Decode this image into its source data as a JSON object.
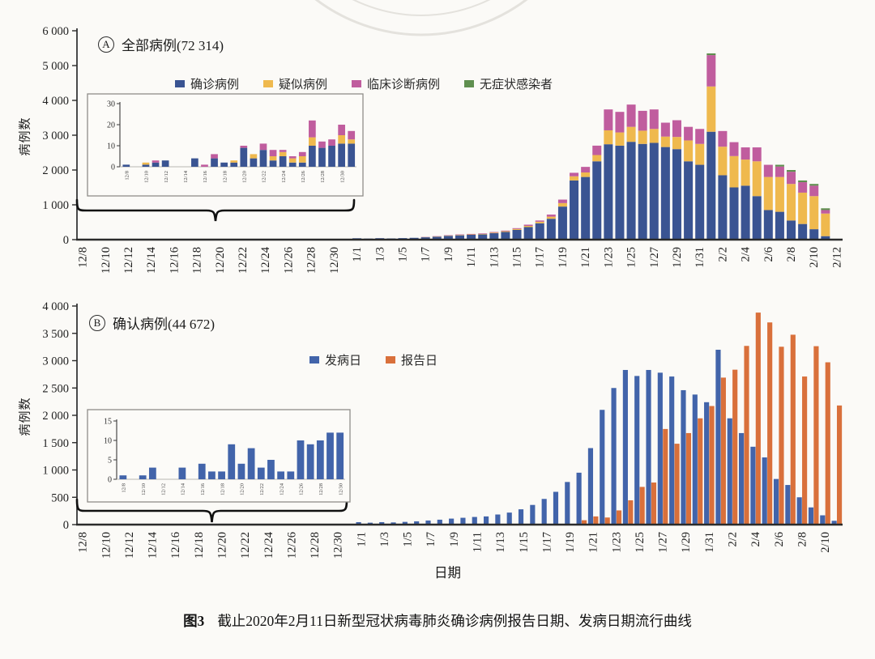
{
  "figure": {
    "caption_label": "图3",
    "caption_text": "截止2020年2月11日新型冠状病毒肺炎确诊病例报告日期、发病日期流行曲线",
    "x_axis_title": "日期",
    "y_axis_title": "病例数"
  },
  "colors": {
    "confirmed_blue": "#3a5492",
    "onset_blue": "#4264aa",
    "suspected_yellow": "#efb94e",
    "clinical_pink": "#c05d9e",
    "asymptomatic_green": "#5f8f4f",
    "report_orange": "#d9703b",
    "axis": "#2b2b2b",
    "watermark": "#e4e2dd"
  },
  "chart_data": [
    {
      "id": "panel-a",
      "type": "bar",
      "stacked": true,
      "panel_letter": "A",
      "title": "全部病例(72 314)",
      "total_cases": "72 314",
      "ylabel": "病例数",
      "ylim": [
        0,
        6000
      ],
      "yticks": [
        "0",
        "1 000",
        "2 000",
        "3 000",
        "4 000",
        "5 000",
        "6 000"
      ],
      "label_every": 2,
      "categories": [
        "12/8",
        "12/9",
        "12/10",
        "12/11",
        "12/12",
        "12/13",
        "12/14",
        "12/15",
        "12/16",
        "12/17",
        "12/18",
        "12/19",
        "12/20",
        "12/21",
        "12/22",
        "12/23",
        "12/24",
        "12/25",
        "12/26",
        "12/27",
        "12/28",
        "12/29",
        "12/30",
        "12/31",
        "1/1",
        "1/2",
        "1/3",
        "1/4",
        "1/5",
        "1/6",
        "1/7",
        "1/8",
        "1/9",
        "1/10",
        "1/11",
        "1/12",
        "1/13",
        "1/14",
        "1/15",
        "1/16",
        "1/17",
        "1/18",
        "1/19",
        "1/20",
        "1/21",
        "1/22",
        "1/23",
        "1/24",
        "1/25",
        "1/26",
        "1/27",
        "1/28",
        "1/29",
        "1/30",
        "1/31",
        "2/1",
        "2/2",
        "2/3",
        "2/4",
        "2/5",
        "2/6",
        "2/7",
        "2/8",
        "2/9",
        "2/10",
        "2/11",
        "2/12"
      ],
      "series": [
        {
          "name": "确诊病例",
          "color": "#3a5492",
          "values": [
            1,
            0,
            1,
            2,
            3,
            0,
            0,
            4,
            0,
            4,
            2,
            2,
            9,
            4,
            8,
            3,
            5,
            2,
            2,
            10,
            9,
            10,
            11,
            11,
            40,
            30,
            42,
            35,
            44,
            52,
            68,
            85,
            110,
            125,
            140,
            150,
            185,
            220,
            280,
            360,
            470,
            600,
            950,
            1700,
            1800,
            2250,
            2740,
            2700,
            2810,
            2750,
            2780,
            2660,
            2600,
            2250,
            2150,
            3100,
            1850,
            1500,
            1550,
            1250,
            850,
            800,
            550,
            450,
            300,
            100,
            0
          ]
        },
        {
          "name": "疑似病例",
          "color": "#efb94e",
          "values": [
            0,
            0,
            1,
            0,
            0,
            0,
            0,
            0,
            0,
            0,
            0,
            1,
            0,
            2,
            0,
            2,
            2,
            2,
            3,
            4,
            0,
            0,
            4,
            2,
            3,
            3,
            4,
            3,
            4,
            4,
            6,
            7,
            10,
            12,
            12,
            15,
            18,
            22,
            28,
            35,
            45,
            60,
            100,
            120,
            130,
            180,
            400,
            380,
            430,
            380,
            400,
            300,
            350,
            600,
            600,
            1300,
            820,
            900,
            750,
            1000,
            950,
            1000,
            1050,
            900,
            950,
            650,
            0
          ]
        },
        {
          "name": "临床诊断病例",
          "color": "#c05d9e",
          "values": [
            0,
            0,
            0,
            1,
            0,
            0,
            0,
            0,
            1,
            2,
            0,
            0,
            1,
            0,
            3,
            3,
            1,
            1,
            2,
            8,
            3,
            3,
            5,
            4,
            2,
            2,
            4,
            2,
            2,
            4,
            6,
            8,
            10,
            13,
            13,
            15,
            17,
            18,
            22,
            35,
            35,
            60,
            100,
            100,
            160,
            270,
            600,
            590,
            640,
            570,
            560,
            400,
            480,
            390,
            430,
            900,
            450,
            400,
            350,
            400,
            350,
            300,
            350,
            300,
            300,
            100,
            0
          ]
        },
        {
          "name": "无症状感染者",
          "color": "#5f8f4f",
          "values": [
            0,
            0,
            0,
            0,
            0,
            0,
            0,
            0,
            0,
            0,
            0,
            0,
            0,
            0,
            0,
            0,
            0,
            0,
            0,
            0,
            0,
            0,
            0,
            0,
            0,
            0,
            0,
            0,
            0,
            0,
            0,
            0,
            0,
            0,
            0,
            0,
            0,
            0,
            0,
            0,
            0,
            0,
            0,
            0,
            0,
            0,
            0,
            0,
            0,
            0,
            0,
            0,
            0,
            0,
            0,
            50,
            0,
            0,
            0,
            0,
            0,
            50,
            50,
            50,
            50,
            50,
            0
          ]
        }
      ],
      "inset": {
        "ylim": [
          0,
          30
        ],
        "yticks": [
          "0",
          "10",
          "20",
          "30"
        ],
        "label_every": 2,
        "categories": [
          "12/8",
          "12/9",
          "12/10",
          "12/11",
          "12/12",
          "12/13",
          "12/14",
          "12/15",
          "12/16",
          "12/17",
          "12/18",
          "12/19",
          "12/20",
          "12/21",
          "12/22",
          "12/23",
          "12/24",
          "12/25",
          "12/26",
          "12/27",
          "12/28",
          "12/29",
          "12/30",
          "12/31"
        ],
        "series": [
          {
            "name": "确诊病例",
            "color": "#3a5492",
            "values": [
              1,
              0,
              1,
              2,
              3,
              0,
              0,
              4,
              0,
              4,
              2,
              2,
              9,
              4,
              8,
              3,
              5,
              2,
              2,
              10,
              9,
              10,
              11,
              11
            ]
          },
          {
            "name": "疑似病例",
            "color": "#efb94e",
            "values": [
              0,
              0,
              1,
              0,
              0,
              0,
              0,
              0,
              0,
              0,
              0,
              1,
              0,
              2,
              0,
              2,
              2,
              2,
              3,
              4,
              0,
              0,
              4,
              2
            ]
          },
          {
            "name": "临床诊断病例",
            "color": "#c05d9e",
            "values": [
              0,
              0,
              0,
              1,
              0,
              0,
              0,
              0,
              1,
              2,
              0,
              0,
              1,
              0,
              3,
              3,
              1,
              1,
              2,
              8,
              3,
              3,
              5,
              4
            ]
          }
        ]
      }
    },
    {
      "id": "panel-b",
      "type": "bar",
      "stacked": false,
      "panel_letter": "B",
      "title": "确认病例(44 672)",
      "total_cases": "44 672",
      "ylabel": "病例数",
      "ylim": [
        0,
        4000
      ],
      "yticks": [
        "0",
        "500",
        "1 000",
        "1 500",
        "2 000",
        "2 500",
        "3 000",
        "3 500",
        "4 000"
      ],
      "label_every": 2,
      "categories": [
        "12/8",
        "12/9",
        "12/10",
        "12/11",
        "12/12",
        "12/13",
        "12/14",
        "12/15",
        "12/16",
        "12/17",
        "12/18",
        "12/19",
        "12/20",
        "12/21",
        "12/22",
        "12/23",
        "12/24",
        "12/25",
        "12/26",
        "12/27",
        "12/28",
        "12/29",
        "12/30",
        "12/31",
        "1/1",
        "1/2",
        "1/3",
        "1/4",
        "1/5",
        "1/6",
        "1/7",
        "1/8",
        "1/9",
        "1/10",
        "1/11",
        "1/12",
        "1/13",
        "1/14",
        "1/15",
        "1/16",
        "1/17",
        "1/18",
        "1/19",
        "1/20",
        "1/21",
        "1/22",
        "1/23",
        "1/24",
        "1/25",
        "1/26",
        "1/27",
        "1/28",
        "1/29",
        "1/30",
        "1/31",
        "2/1",
        "2/2",
        "2/3",
        "2/4",
        "2/5",
        "2/6",
        "2/7",
        "2/8",
        "2/9",
        "2/10",
        "2/11"
      ],
      "series": [
        {
          "name": "发病日",
          "color": "#4264aa",
          "values": [
            1,
            0,
            1,
            3,
            0,
            0,
            3,
            0,
            4,
            2,
            2,
            9,
            4,
            8,
            3,
            5,
            2,
            2,
            10,
            9,
            10,
            12,
            12,
            12,
            45,
            35,
            45,
            40,
            50,
            60,
            75,
            90,
            110,
            125,
            140,
            150,
            185,
            220,
            280,
            360,
            470,
            600,
            780,
            950,
            1400,
            2100,
            2500,
            2830,
            2720,
            2830,
            2780,
            2710,
            2460,
            2380,
            2240,
            3200,
            1945,
            1675,
            1425,
            1230,
            835,
            725,
            500,
            315,
            170,
            70
          ]
        },
        {
          "name": "报告日",
          "color": "#d9703b",
          "values": [
            0,
            0,
            0,
            0,
            0,
            0,
            0,
            0,
            0,
            0,
            0,
            0,
            0,
            0,
            0,
            0,
            0,
            0,
            0,
            0,
            0,
            0,
            0,
            0,
            0,
            0,
            0,
            0,
            0,
            0,
            0,
            0,
            0,
            0,
            0,
            0,
            0,
            0,
            0,
            0,
            0,
            0,
            0,
            80,
            150,
            130,
            260,
            445,
            690,
            770,
            1750,
            1480,
            1675,
            1945,
            2170,
            2690,
            2835,
            3270,
            3880,
            3700,
            3255,
            3475,
            2710,
            3265,
            2970,
            2180
          ]
        }
      ],
      "inset": {
        "ylim": [
          0,
          15
        ],
        "yticks": [
          "0",
          "5",
          "10",
          "15"
        ],
        "label_every": 2,
        "categories": [
          "12/8",
          "12/9",
          "12/10",
          "12/11",
          "12/12",
          "12/13",
          "12/14",
          "12/15",
          "12/16",
          "12/17",
          "12/18",
          "12/19",
          "12/20",
          "12/21",
          "12/22",
          "12/23",
          "12/24",
          "12/25",
          "12/26",
          "12/27",
          "12/28",
          "12/29",
          "12/30"
        ],
        "series": [
          {
            "name": "发病日",
            "color": "#4264aa",
            "values": [
              1,
              0,
              1,
              3,
              0,
              0,
              3,
              0,
              4,
              2,
              2,
              9,
              4,
              8,
              3,
              5,
              2,
              2,
              10,
              9,
              10,
              12,
              12
            ]
          }
        ]
      }
    }
  ]
}
